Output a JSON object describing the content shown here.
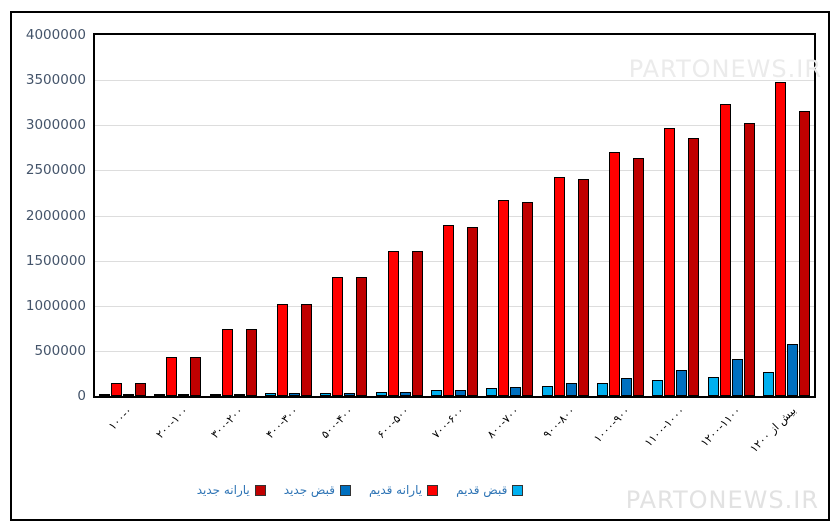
{
  "watermark": {
    "text": "PARTONEWS.IR"
  },
  "legend": {
    "items": [
      {
        "label": "قبض قدیم",
        "color": "#00B0F0"
      },
      {
        "label": "یارانه قدیم",
        "color": "#FF0000"
      },
      {
        "label": "قبض جدید",
        "color": "#0070C0"
      },
      {
        "label": "یارانه جدید",
        "color": "#C00000"
      }
    ]
  },
  "chart_data": {
    "type": "bar",
    "title": "",
    "xlabel": "",
    "ylabel": "",
    "grid": "horizontal",
    "legend_position": "bottom",
    "ylim": [
      0,
      4000000
    ],
    "ytick_step": 500000,
    "ytick_labels": [
      "0",
      "500000",
      "1000000",
      "1500000",
      "2000000",
      "2500000",
      "3000000",
      "3500000",
      "4000000"
    ],
    "categories": [
      "۱۰۰-۰",
      "۲۰۰-۱۰۰",
      "۳۰۰-۲۰۰",
      "۴۰۰-۳۰۰",
      "۵۰۰-۴۰۰",
      "۶۰۰-۵۰۰",
      "۷۰۰-۶۰۰",
      "۸۰۰-۷۰۰",
      "۹۰۰-۸۰۰",
      "۱۰۰۰-۹۰۰",
      "۱۱۰۰-۱۰۰۰",
      "۱۲۰۰-۱۱۰۰",
      "بیش از ۱۲۰۰"
    ],
    "series": [
      {
        "name": "قبض قدیم",
        "color": "#00B0F0",
        "values": [
          10000,
          12000,
          15000,
          30000,
          35000,
          45000,
          65000,
          85000,
          110000,
          145000,
          180000,
          210000,
          270000
        ]
      },
      {
        "name": "یارانه قدیم",
        "color": "#FF0000",
        "values": [
          140000,
          430000,
          740000,
          1020000,
          1320000,
          1610000,
          1890000,
          2170000,
          2430000,
          2700000,
          2970000,
          3240000,
          3480000
        ]
      },
      {
        "name": "قبض جدید",
        "color": "#0070C0",
        "values": [
          12000,
          14000,
          18000,
          32000,
          38000,
          48000,
          72000,
          95000,
          140000,
          205000,
          290000,
          410000,
          580000
        ]
      },
      {
        "name": "یارانه جدید",
        "color": "#C00000",
        "values": [
          140000,
          430000,
          740000,
          1020000,
          1320000,
          1610000,
          1875000,
          2150000,
          2410000,
          2640000,
          2860000,
          3030000,
          3160000
        ]
      }
    ]
  }
}
